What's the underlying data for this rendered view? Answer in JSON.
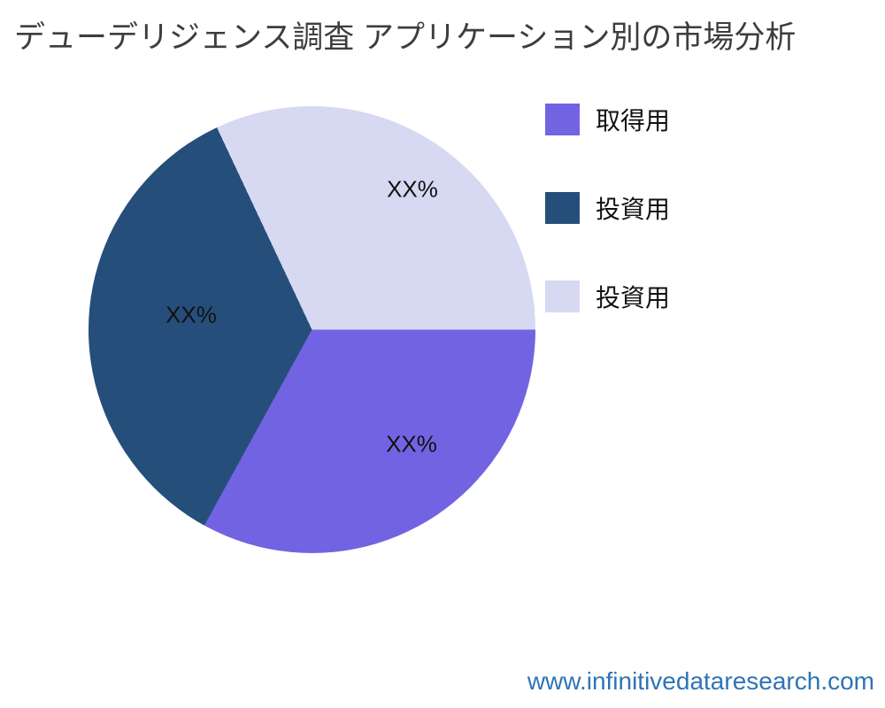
{
  "page": {
    "title": "デューデリジェンス調査 アプリケーション別の市場分析",
    "footer_url": "www.infinitivedataresearch.com"
  },
  "chart_data": {
    "type": "pie",
    "title": "デューデリジェンス調査 アプリケーション別の市場分析",
    "legend_position": "right",
    "start_angle": "east",
    "direction": "clockwise",
    "grid": false,
    "slices": [
      {
        "legend_label": "取得用",
        "data_label": "XX%",
        "color": "#7263e3",
        "percent": 33
      },
      {
        "legend_label": "投資用",
        "data_label": "XX%",
        "color": "#254f7a",
        "percent": 35
      },
      {
        "legend_label": "投資用",
        "data_label": "XX%",
        "color": "#d7d8f2",
        "percent": 32
      }
    ],
    "colors": {
      "title_text": "#3d3d3d",
      "label_text": "#111111",
      "footer_link": "#2e74b6",
      "background": "#ffffff"
    }
  }
}
